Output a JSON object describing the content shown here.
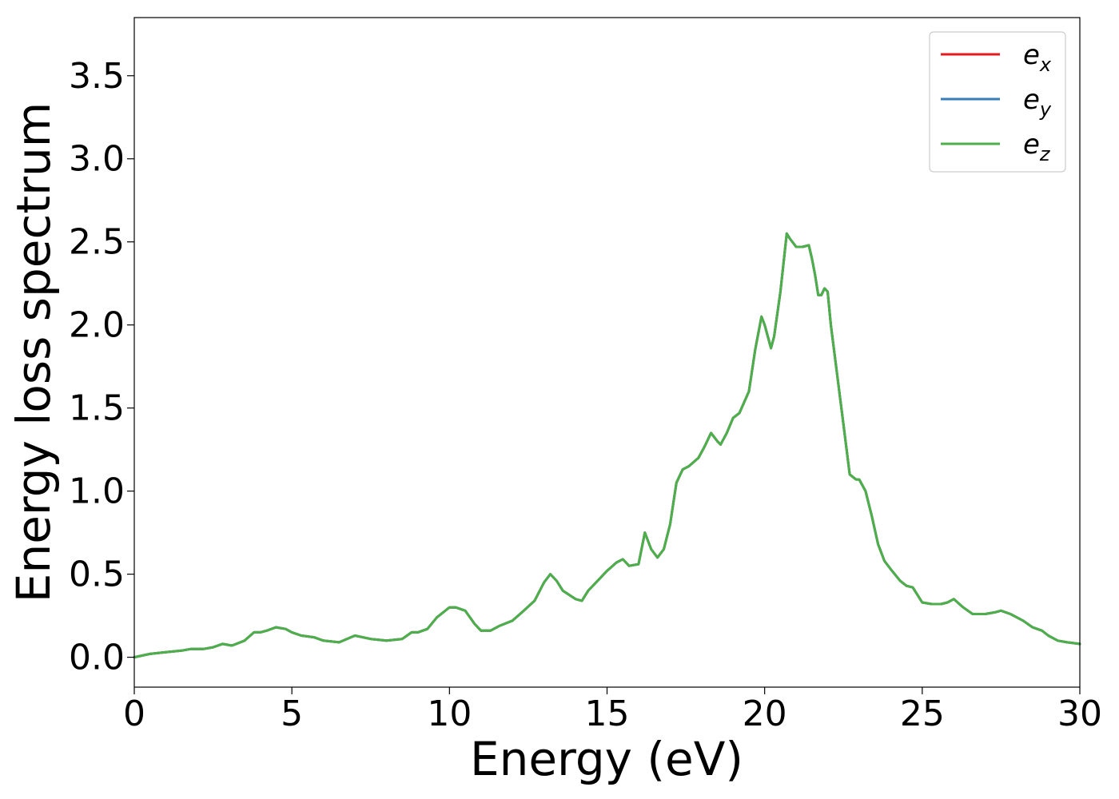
{
  "chart_data": {
    "type": "line",
    "xlabel": "Energy (eV)",
    "ylabel": "Energy loss spectrum",
    "xlim": [
      0,
      30
    ],
    "ylim": [
      -0.18,
      3.85
    ],
    "xticks": [
      0,
      5,
      10,
      15,
      20,
      25,
      30
    ],
    "xtick_labels": [
      "0",
      "5",
      "10",
      "15",
      "20",
      "25",
      "30"
    ],
    "yticks": [
      0.0,
      0.5,
      1.0,
      1.5,
      2.0,
      2.5,
      3.0,
      3.5
    ],
    "ytick_labels": [
      "0.0",
      "0.5",
      "1.0",
      "1.5",
      "2.0",
      "2.5",
      "3.0",
      "3.5"
    ],
    "grid": false,
    "legend_position": "top-right",
    "x": [
      0.0,
      0.5,
      1.0,
      1.5,
      1.8,
      2.2,
      2.5,
      2.8,
      3.1,
      3.5,
      3.8,
      4.0,
      4.2,
      4.5,
      4.8,
      5.0,
      5.3,
      5.7,
      6.0,
      6.5,
      7.0,
      7.5,
      8.0,
      8.5,
      8.8,
      9.0,
      9.3,
      9.6,
      10.0,
      10.2,
      10.5,
      10.8,
      11.0,
      11.3,
      11.6,
      12.0,
      12.3,
      12.7,
      13.0,
      13.2,
      13.4,
      13.6,
      14.0,
      14.2,
      14.4,
      14.8,
      15.0,
      15.3,
      15.5,
      15.7,
      16.0,
      16.2,
      16.4,
      16.6,
      16.8,
      17.0,
      17.2,
      17.4,
      17.6,
      17.9,
      18.1,
      18.3,
      18.5,
      18.6,
      18.8,
      19.0,
      19.2,
      19.5,
      19.7,
      19.9,
      20.0,
      20.2,
      20.3,
      20.5,
      20.7,
      20.8,
      21.0,
      21.2,
      21.4,
      21.5,
      21.6,
      21.7,
      21.8,
      21.9,
      22.0,
      22.1,
      22.3,
      22.5,
      22.7,
      22.9,
      23.0,
      23.2,
      23.4,
      23.6,
      23.8,
      24.0,
      24.3,
      24.5,
      24.7,
      25.0,
      25.3,
      25.6,
      25.8,
      26.0,
      26.3,
      26.6,
      27.0,
      27.3,
      27.5,
      27.8,
      28.2,
      28.5,
      28.8,
      29.0,
      29.3,
      29.6,
      30.0
    ],
    "series": [
      {
        "name": "e_x",
        "color": "#e41a1c",
        "values": [
          0.0,
          0.02,
          0.03,
          0.04,
          0.05,
          0.05,
          0.06,
          0.08,
          0.07,
          0.1,
          0.15,
          0.15,
          0.16,
          0.18,
          0.17,
          0.15,
          0.13,
          0.12,
          0.1,
          0.09,
          0.13,
          0.11,
          0.1,
          0.11,
          0.15,
          0.15,
          0.17,
          0.24,
          0.3,
          0.3,
          0.28,
          0.2,
          0.16,
          0.16,
          0.19,
          0.22,
          0.27,
          0.34,
          0.45,
          0.5,
          0.46,
          0.4,
          0.35,
          0.34,
          0.4,
          0.48,
          0.52,
          0.57,
          0.59,
          0.55,
          0.56,
          0.75,
          0.65,
          0.6,
          0.65,
          0.8,
          1.05,
          1.13,
          1.15,
          1.2,
          1.27,
          1.35,
          1.3,
          1.28,
          1.35,
          1.44,
          1.47,
          1.6,
          1.85,
          2.05,
          2.0,
          1.86,
          1.93,
          2.2,
          2.55,
          2.52,
          2.47,
          2.47,
          2.48,
          2.4,
          2.3,
          2.18,
          2.18,
          2.22,
          2.2,
          2.0,
          1.7,
          1.4,
          1.1,
          1.07,
          1.07,
          1.0,
          0.85,
          0.68,
          0.58,
          0.53,
          0.46,
          0.43,
          0.42,
          0.33,
          0.32,
          0.32,
          0.33,
          0.35,
          0.3,
          0.26,
          0.26,
          0.27,
          0.28,
          0.26,
          0.22,
          0.18,
          0.16,
          0.13,
          0.1,
          0.09,
          0.08
        ]
      },
      {
        "name": "e_y",
        "color": "#377eb8",
        "values": [
          0.0,
          0.02,
          0.03,
          0.04,
          0.05,
          0.05,
          0.06,
          0.08,
          0.07,
          0.1,
          0.15,
          0.15,
          0.16,
          0.18,
          0.17,
          0.15,
          0.13,
          0.12,
          0.1,
          0.09,
          0.13,
          0.11,
          0.1,
          0.11,
          0.15,
          0.15,
          0.17,
          0.24,
          0.3,
          0.3,
          0.28,
          0.2,
          0.16,
          0.16,
          0.19,
          0.22,
          0.27,
          0.34,
          0.45,
          0.5,
          0.46,
          0.4,
          0.35,
          0.34,
          0.4,
          0.48,
          0.52,
          0.57,
          0.59,
          0.55,
          0.56,
          0.75,
          0.65,
          0.6,
          0.65,
          0.8,
          1.05,
          1.13,
          1.15,
          1.2,
          1.27,
          1.35,
          1.3,
          1.28,
          1.35,
          1.44,
          1.47,
          1.6,
          1.85,
          2.05,
          2.0,
          1.86,
          1.93,
          2.2,
          2.55,
          2.52,
          2.47,
          2.47,
          2.48,
          2.4,
          2.3,
          2.18,
          2.18,
          2.22,
          2.2,
          2.0,
          1.7,
          1.4,
          1.1,
          1.07,
          1.07,
          1.0,
          0.85,
          0.68,
          0.58,
          0.53,
          0.46,
          0.43,
          0.42,
          0.33,
          0.32,
          0.32,
          0.33,
          0.35,
          0.3,
          0.26,
          0.26,
          0.27,
          0.28,
          0.26,
          0.22,
          0.18,
          0.16,
          0.13,
          0.1,
          0.09,
          0.08
        ]
      },
      {
        "name": "e_z",
        "color": "#4daf4a",
        "values": [
          0.0,
          0.02,
          0.03,
          0.04,
          0.05,
          0.05,
          0.06,
          0.08,
          0.07,
          0.1,
          0.15,
          0.15,
          0.16,
          0.18,
          0.17,
          0.15,
          0.13,
          0.12,
          0.1,
          0.09,
          0.13,
          0.11,
          0.1,
          0.11,
          0.15,
          0.15,
          0.17,
          0.24,
          0.3,
          0.3,
          0.28,
          0.2,
          0.16,
          0.16,
          0.19,
          0.22,
          0.27,
          0.34,
          0.45,
          0.5,
          0.46,
          0.4,
          0.35,
          0.34,
          0.4,
          0.48,
          0.52,
          0.57,
          0.59,
          0.55,
          0.56,
          0.75,
          0.65,
          0.6,
          0.65,
          0.8,
          1.05,
          1.13,
          1.15,
          1.2,
          1.27,
          1.35,
          1.3,
          1.28,
          1.35,
          1.44,
          1.47,
          1.6,
          1.85,
          2.05,
          2.0,
          1.86,
          1.93,
          2.2,
          2.55,
          2.52,
          2.47,
          2.47,
          2.48,
          2.4,
          2.3,
          2.18,
          2.18,
          2.22,
          2.2,
          2.0,
          1.7,
          1.4,
          1.1,
          1.07,
          1.07,
          1.0,
          0.85,
          0.68,
          0.58,
          0.53,
          0.46,
          0.43,
          0.42,
          0.33,
          0.32,
          0.32,
          0.33,
          0.35,
          0.3,
          0.26,
          0.26,
          0.27,
          0.28,
          0.26,
          0.22,
          0.18,
          0.16,
          0.13,
          0.1,
          0.09,
          0.08
        ]
      }
    ],
    "legend": [
      {
        "base": "e",
        "sub": "x",
        "color": "#e41a1c"
      },
      {
        "base": "e",
        "sub": "y",
        "color": "#377eb8"
      },
      {
        "base": "e",
        "sub": "z",
        "color": "#4daf4a"
      }
    ]
  }
}
